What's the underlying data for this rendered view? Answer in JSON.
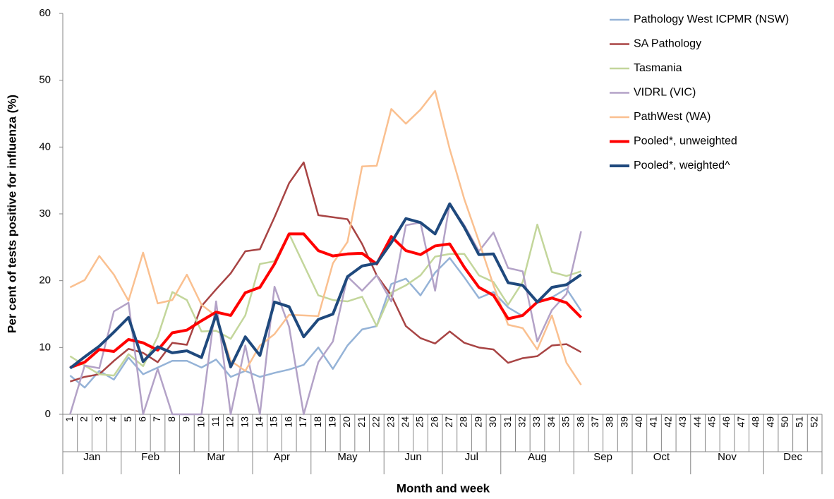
{
  "chart_data": {
    "type": "line",
    "y_label": "Per cent of tests positive for influenza (%)",
    "x_label": "Month and week",
    "categories": [
      "1",
      "2",
      "3",
      "4",
      "5",
      "6",
      "7",
      "8",
      "9",
      "10",
      "11",
      "12",
      "13",
      "14",
      "15",
      "16",
      "17",
      "18",
      "19",
      "20",
      "21",
      "22",
      "23",
      "24",
      "25",
      "26",
      "27",
      "28",
      "29",
      "30",
      "31",
      "32",
      "33",
      "34",
      "35",
      "36",
      "37",
      "38",
      "39",
      "40",
      "41",
      "42",
      "43",
      "44",
      "45",
      "46",
      "47",
      "48",
      "49",
      "50",
      "51",
      "52"
    ],
    "months": [
      "Jan",
      "Feb",
      "Mar",
      "Apr",
      "May",
      "Jun",
      "Jul",
      "Aug",
      "Sep",
      "Oct",
      "Nov",
      "Dec"
    ],
    "month_spans": [
      4,
      4,
      5,
      4,
      5,
      4,
      4,
      5,
      4,
      4,
      5,
      4
    ],
    "ylim": [
      0,
      60
    ],
    "yticks": [
      0,
      10,
      20,
      30,
      40,
      50,
      60
    ],
    "grid": false,
    "legend": "right",
    "series": [
      {
        "name": "Pathology West ICPMR (NSW)",
        "color": "#95b3d7",
        "width": 2.5,
        "values": [
          5.8,
          4,
          6.5,
          5.2,
          8.5,
          6,
          7,
          8,
          8,
          7,
          8.2,
          5.6,
          6.5,
          5.6,
          6.2,
          6.7,
          7.4,
          10,
          6.8,
          10.3,
          12.7,
          13.2,
          19.5,
          20.3,
          17.8,
          21.2,
          23.4,
          20.5,
          17.4,
          18.3,
          16,
          14.7,
          16.8,
          17.5,
          18.8,
          15.5,
          null,
          null,
          null,
          null,
          null,
          null,
          null,
          null,
          null,
          null,
          null,
          null,
          null,
          null,
          null,
          null
        ]
      },
      {
        "name": "SA Pathology",
        "color": "#a84444",
        "width": 2.5,
        "values": [
          4.9,
          5.6,
          6,
          8,
          9.8,
          9.2,
          7.8,
          10.7,
          10.4,
          16.2,
          18.7,
          21.1,
          24.4,
          24.7,
          29.5,
          34.6,
          37.7,
          29.8,
          29.5,
          29.2,
          25.5,
          20.8,
          17.8,
          13.2,
          11.4,
          10.6,
          12.4,
          10.7,
          10,
          9.7,
          7.7,
          8.4,
          8.7,
          10.3,
          10.5,
          9.3,
          null,
          null,
          null,
          null,
          null,
          null,
          null,
          null,
          null,
          null,
          null,
          null,
          null,
          null,
          null,
          null
        ]
      },
      {
        "name": "Tasmania",
        "color": "#c3d69b",
        "width": 2.5,
        "values": [
          8.7,
          7.3,
          6,
          5.8,
          9,
          7.2,
          11.6,
          18.3,
          17.1,
          12.4,
          12.5,
          11.3,
          14.8,
          22.5,
          22.9,
          27,
          22.4,
          17.8,
          17.1,
          16.9,
          17.6,
          13.2,
          18.2,
          19.3,
          20.8,
          23.6,
          24,
          24,
          20.8,
          19.8,
          16.4,
          19.8,
          28.4,
          21.3,
          20.7,
          21.4,
          null,
          null,
          null,
          null,
          null,
          null,
          null,
          null,
          null,
          null,
          null,
          null,
          null,
          null,
          null,
          null
        ]
      },
      {
        "name": "VIDRL (VIC)",
        "color": "#b3a2c7",
        "width": 2.5,
        "values": [
          0,
          7.3,
          6.9,
          15.4,
          16.7,
          0,
          6.8,
          0,
          0,
          0,
          16.9,
          0,
          10.3,
          0,
          19.1,
          13.1,
          0,
          7.8,
          10.9,
          20.6,
          18.5,
          20.8,
          16.9,
          28.3,
          28.7,
          18.5,
          31.5,
          28.3,
          24.4,
          27.2,
          21.9,
          21.4,
          10.9,
          15.6,
          18,
          27.4,
          null,
          null,
          null,
          null,
          null,
          null,
          null,
          null,
          null,
          null,
          null,
          null,
          null,
          null,
          null,
          null
        ]
      },
      {
        "name": "PathWest (WA)",
        "color": "#fac090",
        "width": 2.5,
        "values": [
          19,
          20.1,
          23.7,
          20.9,
          17,
          24.2,
          16.6,
          17.1,
          20.9,
          16.4,
          14.7,
          8,
          6.5,
          10.3,
          12,
          14.9,
          14.8,
          14.7,
          22.6,
          25.8,
          37.1,
          37.2,
          45.7,
          43.5,
          45.6,
          48.4,
          39.7,
          32.2,
          25.9,
          19.3,
          13.4,
          12.9,
          9.7,
          14.8,
          7.7,
          4.4,
          null,
          null,
          null,
          null,
          null,
          null,
          null,
          null,
          null,
          null,
          null,
          null,
          null,
          null,
          null,
          null
        ]
      },
      {
        "name": "Pooled*, unweighted",
        "color": "#ff0000",
        "width": 4,
        "values": [
          7,
          7.8,
          9.7,
          9.4,
          11.2,
          10.7,
          9.6,
          12.2,
          12.6,
          14,
          15.3,
          14.8,
          18.2,
          19,
          22.5,
          27,
          27,
          24.5,
          23.7,
          24,
          24.1,
          22.5,
          26.6,
          24.5,
          23.9,
          25.2,
          25.5,
          22,
          19,
          17.8,
          14.3,
          14.8,
          16.8,
          17.4,
          16.7,
          14.5,
          null,
          null,
          null,
          null,
          null,
          null,
          null,
          null,
          null,
          null,
          null,
          null,
          null,
          null,
          null,
          null
        ]
      },
      {
        "name": "Pooled*, weighted^",
        "color": "#1f497d",
        "width": 4,
        "values": [
          6.9,
          8.6,
          10.2,
          12.3,
          14.5,
          7.9,
          10.1,
          9.2,
          9.5,
          8.5,
          14.9,
          7.1,
          11.6,
          8.8,
          16.8,
          16.1,
          11.6,
          14.2,
          15,
          20.6,
          22.2,
          22.6,
          25.7,
          29.3,
          28.7,
          27,
          31.5,
          28,
          23.9,
          24,
          19.7,
          19.3,
          16.8,
          19,
          19.4,
          20.9,
          null,
          null,
          null,
          null,
          null,
          null,
          null,
          null,
          null,
          null,
          null,
          null,
          null,
          null,
          null,
          null
        ]
      }
    ]
  }
}
